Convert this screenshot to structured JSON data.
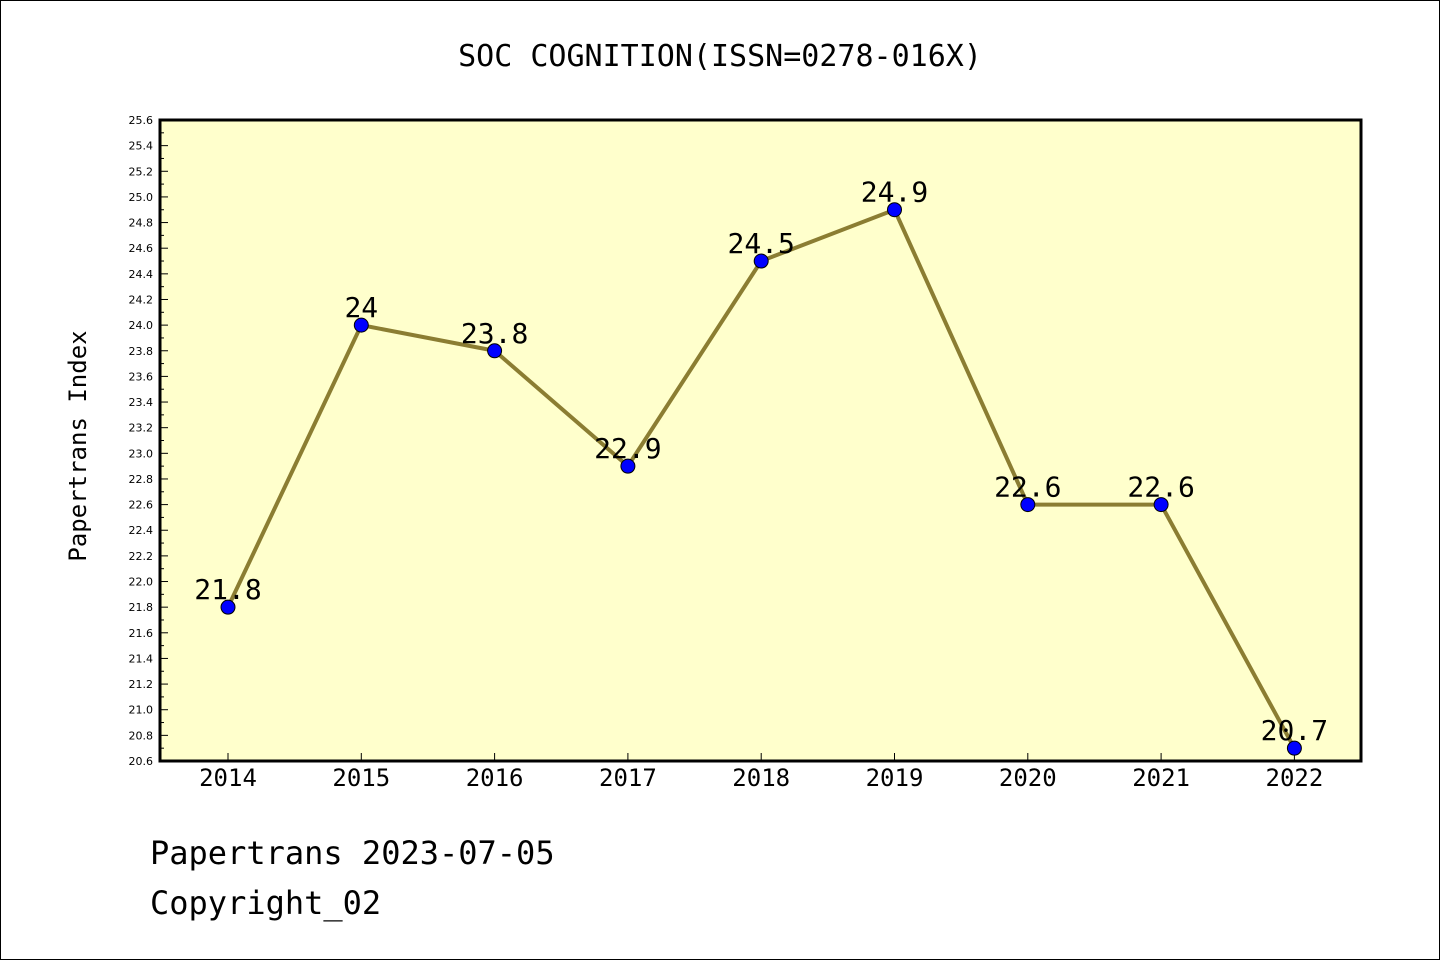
{
  "chart_data": {
    "type": "line",
    "title": "SOC COGNITION(ISSN=0278-016X)",
    "xlabel": "",
    "ylabel": "Papertrans Index",
    "categories": [
      "2014",
      "2015",
      "2016",
      "2017",
      "2018",
      "2019",
      "2020",
      "2021",
      "2022"
    ],
    "series": [
      {
        "values": [
          21.8,
          24.0,
          23.8,
          22.9,
          24.5,
          24.9,
          22.6,
          22.6,
          20.7
        ]
      }
    ],
    "data_labels": [
      "21.8",
      "24",
      "23.8",
      "22.9",
      "24.5",
      "24.9",
      "22.6",
      "22.6",
      "20.7"
    ],
    "ylim": [
      20.6,
      25.6
    ],
    "ytick_step": 0.2,
    "grid": false,
    "legend": "none",
    "colors": {
      "plot_background": "#ffffcc",
      "line": "#8b7d32",
      "marker": "#0000ff"
    }
  },
  "footer": {
    "date_line": "Papertrans 2023-07-05",
    "copyright_line": "Copyright_02"
  }
}
